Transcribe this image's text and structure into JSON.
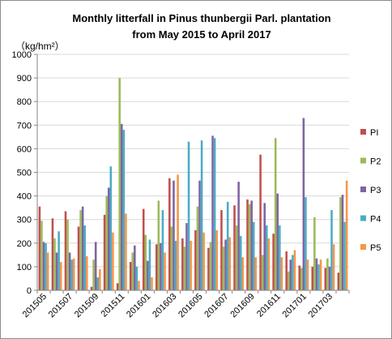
{
  "chart_data": {
    "type": "bar",
    "title": [
      "Monthly litterfall in Pinus thunbergii Parl. plantation",
      "from May 2015  to April 2017"
    ],
    "unit_label": "（kg/hm²）",
    "ylim": [
      0,
      1000
    ],
    "yticks": [
      0,
      100,
      200,
      300,
      400,
      500,
      600,
      700,
      800,
      900,
      1000
    ],
    "grid": true,
    "legend_position": "right",
    "categories": [
      "201505",
      "201506",
      "201507",
      "201508",
      "201509",
      "201510",
      "201511",
      "201512",
      "201601",
      "201602",
      "201603",
      "201604",
      "201605",
      "201606",
      "201607",
      "201608",
      "201609",
      "201610",
      "201611",
      "201612",
      "201701",
      "201702",
      "201703",
      "201704"
    ],
    "xtick_labels": [
      "201505",
      "201507",
      "201509",
      "201511",
      "201601",
      "201603",
      "201605",
      "201607",
      "201609",
      "201611",
      "201701",
      "201703"
    ],
    "series": [
      {
        "name": "PI",
        "color": "#c0504d",
        "values": [
          355,
          305,
          335,
          270,
          15,
          320,
          30,
          120,
          345,
          195,
          475,
          220,
          255,
          180,
          340,
          360,
          385,
          575,
          240,
          165,
          105,
          100,
          95,
          75
        ]
      },
      {
        "name": "P2",
        "color": "#9bbb59",
        "values": [
          295,
          220,
          300,
          340,
          130,
          400,
          900,
          160,
          235,
          380,
          270,
          185,
          355,
          205,
          185,
          275,
          365,
          150,
          645,
          80,
          95,
          310,
          135,
          395
        ]
      },
      {
        "name": "P3",
        "color": "#8064a2",
        "values": [
          205,
          160,
          160,
          355,
          205,
          435,
          705,
          190,
          125,
          200,
          465,
          285,
          465,
          655,
          215,
          460,
          380,
          370,
          410,
          130,
          730,
          135,
          100,
          405
        ]
      },
      {
        "name": "P4",
        "color": "#4bacc6",
        "values": [
          200,
          250,
          130,
          275,
          55,
          525,
          680,
          100,
          215,
          340,
          210,
          630,
          635,
          645,
          375,
          230,
          290,
          275,
          275,
          150,
          395,
          110,
          340,
          290
        ]
      },
      {
        "name": "P5",
        "color": "#f79646",
        "values": [
          160,
          120,
          135,
          145,
          90,
          245,
          325,
          40,
          55,
          160,
          490,
          210,
          245,
          255,
          225,
          140,
          140,
          220,
          140,
          170,
          130,
          130,
          195,
          465
        ]
      }
    ]
  }
}
